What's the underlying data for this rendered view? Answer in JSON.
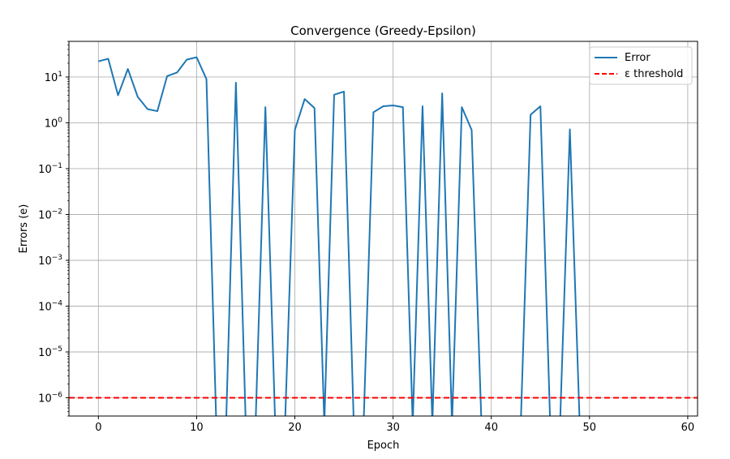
{
  "chart_data": {
    "type": "line",
    "title": "Convergence (Greedy-Epsilon)",
    "xlabel": "Epoch",
    "ylabel": "Errors (e)",
    "xlim": [
      -3,
      61
    ],
    "ylim": [
      4e-07,
      60
    ],
    "yscale": "log",
    "grid": true,
    "legend_position": "top-right",
    "x_ticks": [
      0,
      10,
      20,
      30,
      40,
      50,
      60
    ],
    "y_ticks": [
      -6,
      -5,
      -4,
      -3,
      -2,
      -1,
      0,
      1
    ],
    "y_tick_labels": [
      {
        "base": "10",
        "exp": "−6"
      },
      {
        "base": "10",
        "exp": "−5"
      },
      {
        "base": "10",
        "exp": "−4"
      },
      {
        "base": "10",
        "exp": "−3"
      },
      {
        "base": "10",
        "exp": "−2"
      },
      {
        "base": "10",
        "exp": "−1"
      },
      {
        "base": "10",
        "exp": "0"
      },
      {
        "base": "10",
        "exp": "1"
      }
    ],
    "series": [
      {
        "name": "Error",
        "color": "#1f77b4",
        "style": "solid",
        "x": [
          0,
          1,
          2,
          3,
          4,
          5,
          6,
          7,
          8,
          9,
          10,
          11,
          12,
          13,
          14,
          15,
          16,
          17,
          18,
          19,
          20,
          21,
          22,
          23,
          24,
          25,
          26,
          27,
          28,
          29,
          30,
          31,
          32,
          33,
          34,
          35,
          36,
          37,
          38,
          39,
          40,
          41,
          42,
          43,
          44,
          45,
          46,
          47,
          48,
          49
        ],
        "y": [
          22,
          25,
          4,
          15,
          3.7,
          2,
          1.8,
          10.5,
          12.5,
          24,
          27,
          9,
          0,
          0,
          7.5,
          0,
          0,
          2.2,
          0,
          0,
          0.7,
          3.3,
          2.1,
          0,
          4.1,
          4.8,
          0,
          0,
          1.7,
          2.3,
          2.4,
          2.2,
          0,
          2.3,
          0,
          4.4,
          0,
          2.2,
          0.7,
          0,
          0,
          0,
          0,
          0,
          1.5,
          2.3,
          0,
          0,
          0.72,
          0
        ]
      },
      {
        "name": "ε threshold",
        "color": "#ff0000",
        "style": "dashed",
        "value": 1e-06
      }
    ]
  }
}
